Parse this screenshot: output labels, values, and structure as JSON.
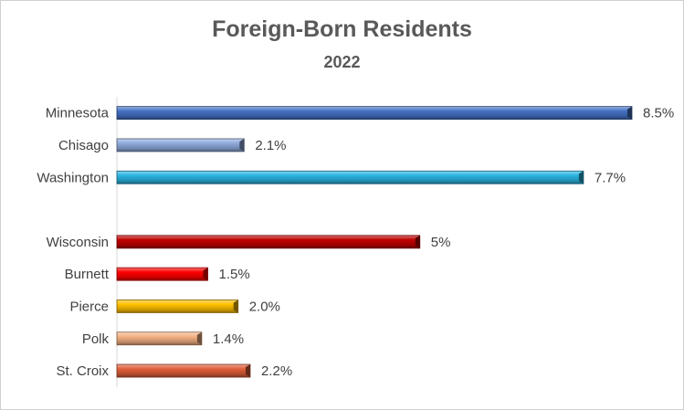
{
  "chart_data": {
    "type": "bar",
    "orientation": "horizontal",
    "title": "Foreign-Born Residents",
    "subtitle": "2022",
    "xlabel": "",
    "ylabel": "",
    "xlim": [
      0,
      9
    ],
    "grid": false,
    "legend": "none",
    "categories": [
      "Minnesota",
      "Chisago",
      "Washington",
      "",
      "Wisconsin",
      "Burnett",
      "Pierce",
      "Polk",
      "St. Croix"
    ],
    "values": [
      8.5,
      2.1,
      7.7,
      null,
      5,
      1.5,
      2.0,
      1.4,
      2.2
    ],
    "data_labels": [
      "8.5%",
      "2.1%",
      "7.7%",
      "",
      "5%",
      "1.5%",
      "2.0%",
      "1.4%",
      "2.2%"
    ],
    "colors": [
      "#4472c4",
      "#8faadc",
      "#2ab4e0",
      null,
      "#c00000",
      "#ff0000",
      "#ffc000",
      "#f4b183",
      "#e0603a"
    ]
  }
}
